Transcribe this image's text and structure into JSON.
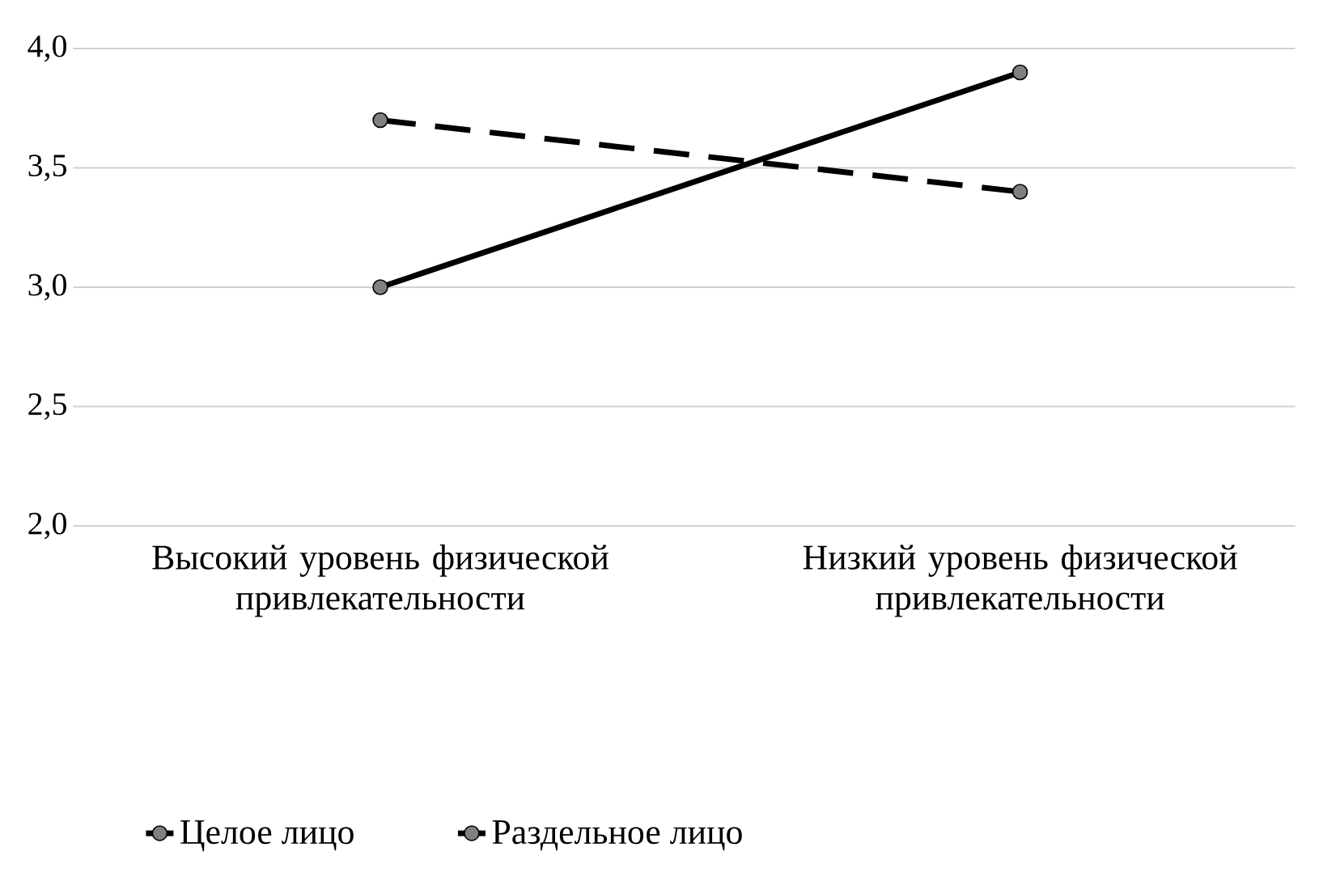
{
  "chart_data": {
    "type": "line",
    "categories": [
      "Высокий уровень физической привлекательности",
      "Низкий уровень  физической привлекательности"
    ],
    "series": [
      {
        "name": "Целое лицо",
        "color": "#000000",
        "values": [
          3.0,
          3.9
        ],
        "line_style": "solid"
      },
      {
        "name": "Раздельное лицо",
        "color": "#000000",
        "values": [
          3.7,
          3.4
        ],
        "line_style": "dashed"
      }
    ],
    "ylim": [
      2.0,
      4.0
    ],
    "yticks": [
      {
        "value": 2.0,
        "label": "2,0"
      },
      {
        "value": 2.5,
        "label": "2,5"
      },
      {
        "value": 3.0,
        "label": "3,0"
      },
      {
        "value": 3.5,
        "label": "3,5"
      },
      {
        "value": 4.0,
        "label": "4,0"
      }
    ],
    "grid": "y",
    "legend": "bottom",
    "marker": "circle"
  }
}
